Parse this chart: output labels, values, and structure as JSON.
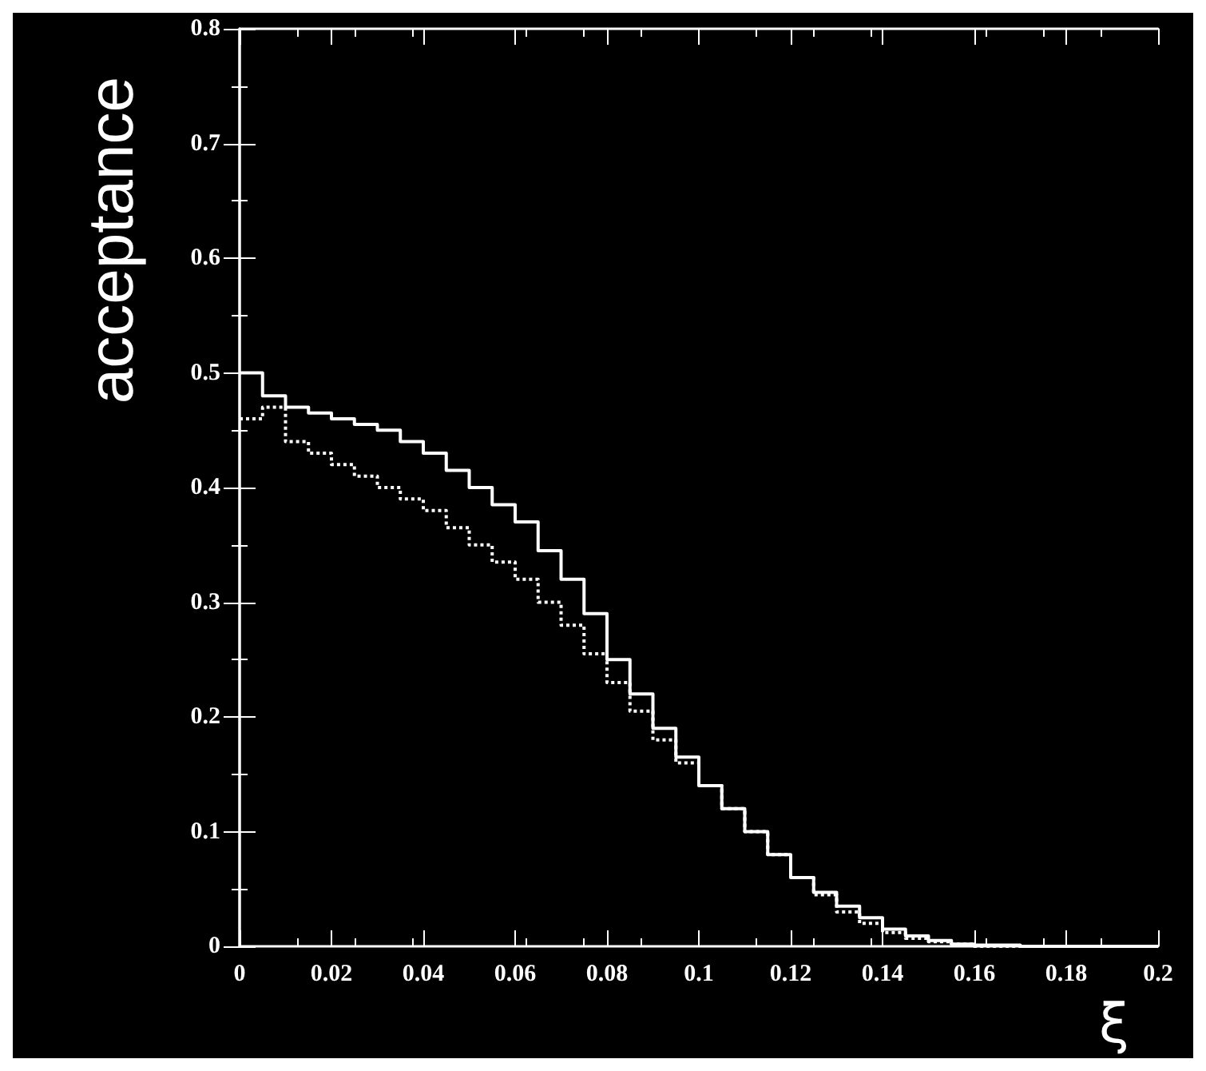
{
  "chart_data": {
    "type": "step",
    "xlabel": "ξ",
    "ylabel": "acceptance",
    "x": [
      0,
      0.005,
      0.01,
      0.015,
      0.02,
      0.025,
      0.03,
      0.035,
      0.04,
      0.045,
      0.05,
      0.055,
      0.06,
      0.065,
      0.07,
      0.075,
      0.08,
      0.085,
      0.09,
      0.095,
      0.1,
      0.105,
      0.11,
      0.115,
      0.12,
      0.125,
      0.13,
      0.135,
      0.14,
      0.145,
      0.15,
      0.155,
      0.16,
      0.17,
      0.18,
      0.19,
      0.2
    ],
    "series": [
      {
        "color": "#ffffff",
        "line_style": "solid",
        "values": [
          0.5,
          0.48,
          0.47,
          0.465,
          0.46,
          0.455,
          0.45,
          0.44,
          0.43,
          0.415,
          0.4,
          0.385,
          0.37,
          0.345,
          0.32,
          0.29,
          0.25,
          0.22,
          0.19,
          0.165,
          0.14,
          0.12,
          0.1,
          0.08,
          0.06,
          0.047,
          0.035,
          0.025,
          0.015,
          0.009,
          0.005,
          0.002,
          0.001,
          0,
          0,
          0,
          0
        ]
      },
      {
        "color": "#ffffff",
        "line_style": "dotted",
        "values": [
          0.46,
          0.47,
          0.44,
          0.43,
          0.42,
          0.41,
          0.4,
          0.39,
          0.38,
          0.365,
          0.35,
          0.335,
          0.32,
          0.3,
          0.28,
          0.255,
          0.23,
          0.205,
          0.18,
          0.16,
          0.14,
          0.12,
          0.1,
          0.08,
          0.06,
          0.045,
          0.03,
          0.02,
          0.012,
          0.007,
          0.004,
          0.002,
          0,
          0,
          0,
          0,
          0
        ]
      }
    ],
    "xlim": [
      0,
      0.2
    ],
    "xticks": [
      0,
      0.02,
      0.04,
      0.06,
      0.08,
      0.1,
      0.12,
      0.14,
      0.16,
      0.18,
      0.2
    ],
    "ylim": [
      0,
      0.8
    ],
    "yticks": [
      0,
      0.1,
      0.2,
      0.3,
      0.4,
      0.5,
      0.6,
      0.7,
      0.8
    ],
    "grid": false
  }
}
